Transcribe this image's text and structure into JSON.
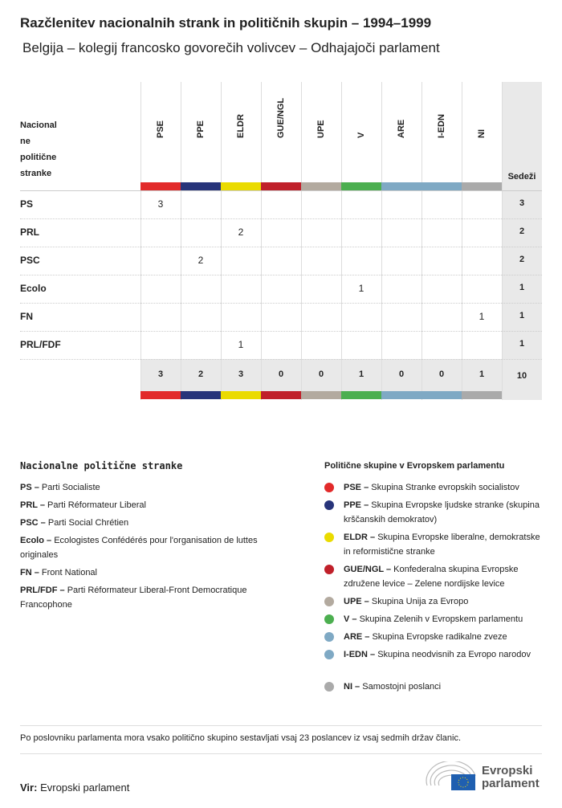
{
  "title": "Razčlenitev nacionalnih strank in političnih skupin – 1994–1999",
  "subtitle": "Belgija – kolegij francosko govorečih volivcev – Odhajajoči parlament",
  "chart_data": {
    "type": "table",
    "row_header": "Nacionalne politične stranke",
    "row_header_lines": [
      "Nacional",
      "ne",
      "politične",
      "stranke"
    ],
    "total_header": "Sedeži",
    "groups": [
      {
        "name": "PSE",
        "color": "#e22a2a"
      },
      {
        "name": "PPE",
        "color": "#27347a"
      },
      {
        "name": "ELDR",
        "color": "#eadb00"
      },
      {
        "name": "GUE/NGL",
        "color": "#c0202a"
      },
      {
        "name": "UPE",
        "color": "#b3aa9f"
      },
      {
        "name": "V",
        "color": "#4caf50"
      },
      {
        "name": "ARE",
        "color": "#7fa9c4"
      },
      {
        "name": "I-EDN",
        "color": "#7fa9c4"
      },
      {
        "name": "NI",
        "color": "#aaaaaa"
      }
    ],
    "rows": [
      {
        "party": "PS",
        "values": [
          3,
          null,
          null,
          null,
          null,
          null,
          null,
          null,
          null
        ],
        "total": 3
      },
      {
        "party": "PRL",
        "values": [
          null,
          null,
          2,
          null,
          null,
          null,
          null,
          null,
          null
        ],
        "total": 2
      },
      {
        "party": "PSC",
        "values": [
          null,
          2,
          null,
          null,
          null,
          null,
          null,
          null,
          null
        ],
        "total": 2
      },
      {
        "party": "Ecolo",
        "values": [
          null,
          null,
          null,
          null,
          null,
          1,
          null,
          null,
          null
        ],
        "total": 1
      },
      {
        "party": "FN",
        "values": [
          null,
          null,
          null,
          null,
          null,
          null,
          null,
          null,
          1
        ],
        "total": 1
      },
      {
        "party": "PRL/FDF",
        "values": [
          null,
          null,
          1,
          null,
          null,
          null,
          null,
          null,
          null
        ],
        "total": 1
      }
    ],
    "column_totals": [
      3,
      2,
      3,
      0,
      0,
      1,
      0,
      0,
      1
    ],
    "grand_total": 10
  },
  "legend_national": {
    "heading": "Nacionalne politične stranke",
    "items": [
      {
        "abbr": "PS –",
        "name": "Parti Socialiste"
      },
      {
        "abbr": "PRL –",
        "name": "Parti Réformateur Liberal"
      },
      {
        "abbr": "PSC –",
        "name": "Parti Social Chrétien"
      },
      {
        "abbr": "Ecolo –",
        "name": "Ecologistes Confédérés pour l'organisation de luttes originales"
      },
      {
        "abbr": "FN –",
        "name": "Front National"
      },
      {
        "abbr": "PRL/FDF –",
        "name": "Parti Réformateur Liberal-Front Democratique Francophone"
      }
    ]
  },
  "legend_groups": {
    "heading": "Politične skupine v Evropskem parlamentu",
    "items": [
      {
        "abbr": "PSE –",
        "name": "Skupina Stranke evropskih socialistov",
        "color": "#e22a2a"
      },
      {
        "abbr": "PPE –",
        "name": "Skupina Evropske ljudske stranke (skupina krščanskih demokratov)",
        "color": "#27347a"
      },
      {
        "abbr": "ELDR –",
        "name": "Skupina Evropske liberalne, demokratske in reformistične stranke",
        "color": "#eadb00"
      },
      {
        "abbr": "GUE/NGL –",
        "name": "Konfederalna skupina Evropske združene levice – Zelene nordijske levice",
        "color": "#c0202a"
      },
      {
        "abbr": "UPE –",
        "name": "Skupina Unija za Evropo",
        "color": "#b3aa9f"
      },
      {
        "abbr": "V –",
        "name": "Skupina Zelenih v Evropskem parlamentu",
        "color": "#4caf50"
      },
      {
        "abbr": "ARE –",
        "name": "Skupina Evropske radikalne zveze",
        "color": "#7fa9c4"
      },
      {
        "abbr": "I-EDN –",
        "name": "Skupina neodvisnih za Evropo narodov",
        "color": "#7fa9c4"
      },
      {
        "abbr": "NI –",
        "name": "Samostojni poslanci",
        "color": "#aaaaaa"
      }
    ]
  },
  "footnote": "Po poslovniku parlamenta mora vsako politično skupino sestavljati vsaj 23 poslancev iz vsaj sedmih držav članic.",
  "source": {
    "label": "Vir:",
    "value": "Evropski parlament"
  },
  "logo": {
    "text1": "Evropski",
    "text2": "parlament"
  }
}
